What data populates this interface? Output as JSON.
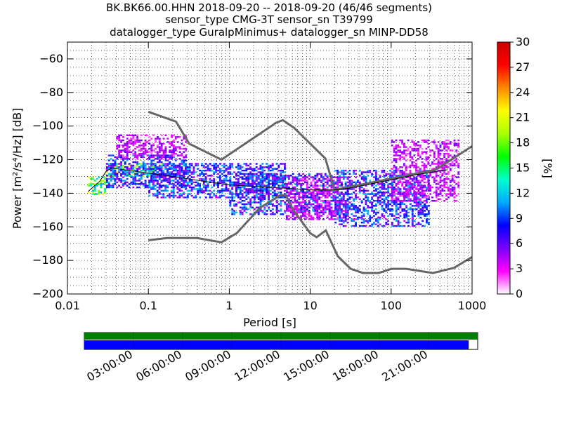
{
  "chart_data": {
    "type": "heatmap",
    "title": [
      "BK.BK66.00.HHN   2018-09-20 -- 2018-09-20  (46/46 segments)",
      "sensor_type CMG-3T sensor_sn T39799",
      "datalogger_type GuralpMinimus+ datalogger_sn MINP-DD58"
    ],
    "xlabel": "Period [s]",
    "ylabel": "Power [m²/s⁴/Hz] [dB]",
    "xscale": "log",
    "xlim": [
      0.01,
      1000
    ],
    "ylim": [
      -200,
      -50
    ],
    "x_ticks": [
      {
        "value": 0.01,
        "label": "0.01"
      },
      {
        "value": 0.1,
        "label": "0.1"
      },
      {
        "value": 1,
        "label": "1"
      },
      {
        "value": 10,
        "label": "10"
      },
      {
        "value": 100,
        "label": "100"
      },
      {
        "value": 1000,
        "label": "1000"
      }
    ],
    "y_ticks": [
      {
        "value": -60,
        "label": "−60"
      },
      {
        "value": -80,
        "label": "−80"
      },
      {
        "value": -100,
        "label": "−100"
      },
      {
        "value": -120,
        "label": "−120"
      },
      {
        "value": -140,
        "label": "−140"
      },
      {
        "value": -160,
        "label": "−160"
      },
      {
        "value": -180,
        "label": "−180"
      },
      {
        "value": -200,
        "label": "−200"
      }
    ],
    "grid": true,
    "colorbar": {
      "label": "[%]",
      "range": [
        0,
        30
      ],
      "ticks": [
        "0",
        "3",
        "6",
        "9",
        "12",
        "15",
        "18",
        "21",
        "24",
        "27",
        "30"
      ],
      "colors": [
        "#ffffff",
        "#ff00ff",
        "#7a00ff",
        "#0000ff",
        "#00aaff",
        "#00ffcc",
        "#00ff00",
        "#aaff00",
        "#ffff00",
        "#ff8800",
        "#ff0000",
        "#cc0000"
      ]
    },
    "noise_models": [
      {
        "name": "high_noise",
        "x": [
          0.1,
          0.22,
          0.32,
          0.8,
          3.8,
          4.6,
          6.3,
          15.4,
          20.0,
          354.8,
          1000
        ],
        "y": [
          -91.5,
          -97.4,
          -110.5,
          -120.0,
          -98.0,
          -96.5,
          -101.0,
          -119.3,
          -138.0,
          -126.0,
          -112.0
        ]
      },
      {
        "name": "low_noise",
        "x": [
          0.1,
          0.17,
          0.4,
          0.8,
          1.24,
          2.4,
          4.3,
          5.0,
          6.0,
          10.0,
          12.0,
          15.6,
          21.9,
          31.6,
          45.0,
          70.0,
          101.0,
          154.0,
          328.0,
          600.0,
          1000
        ],
        "y": [
          -168.0,
          -166.7,
          -166.7,
          -169.2,
          -163.7,
          -148.6,
          -141.1,
          -141.1,
          -149.0,
          -163.8,
          -166.2,
          -162.1,
          -177.5,
          -185.0,
          -187.5,
          -187.5,
          -185.0,
          -185.0,
          -187.5,
          -184.4,
          -178.0
        ]
      }
    ],
    "mean_curve": {
      "x": [
        0.018,
        0.02,
        0.025,
        0.03,
        0.035,
        0.05,
        0.1,
        0.2,
        0.5,
        1,
        2,
        5,
        10,
        20,
        30,
        50,
        100,
        200,
        500
      ],
      "y": [
        -139,
        -137,
        -133,
        -127,
        -125,
        -126,
        -128,
        -130,
        -133,
        -135,
        -136,
        -137,
        -138,
        -138,
        -137,
        -135,
        -132,
        -129,
        -126
      ]
    },
    "density_bands": [
      {
        "x_range": [
          0.018,
          0.03
        ],
        "y_range": [
          -141,
          -130
        ],
        "level": "high"
      },
      {
        "x_range": [
          0.03,
          0.15
        ],
        "y_range": [
          -130,
          -122
        ],
        "level": "high"
      },
      {
        "x_range": [
          0.03,
          0.3
        ],
        "y_range": [
          -137,
          -117
        ],
        "level": "mid"
      },
      {
        "x_range": [
          0.04,
          0.3
        ],
        "y_range": [
          -120,
          -105
        ],
        "level": "low"
      },
      {
        "x_range": [
          0.1,
          5
        ],
        "y_range": [
          -143,
          -122
        ],
        "level": "mid"
      },
      {
        "x_range": [
          1,
          20
        ],
        "y_range": [
          -153,
          -128
        ],
        "level": "mid"
      },
      {
        "x_range": [
          5,
          30
        ],
        "y_range": [
          -156,
          -130
        ],
        "level": "low"
      },
      {
        "x_range": [
          20,
          300
        ],
        "y_range": [
          -160,
          -126
        ],
        "level": "mid"
      },
      {
        "x_range": [
          100,
          700
        ],
        "y_range": [
          -145,
          -108
        ],
        "level": "low"
      }
    ],
    "timeline": {
      "labels": [
        "03:00:00",
        "06:00:00",
        "09:00:00",
        "12:00:00",
        "15:00:00",
        "18:00:00",
        "21:00:00"
      ],
      "start_hour": 0,
      "end_hour": 24,
      "data_coverage_end_hour": 23.45
    }
  }
}
